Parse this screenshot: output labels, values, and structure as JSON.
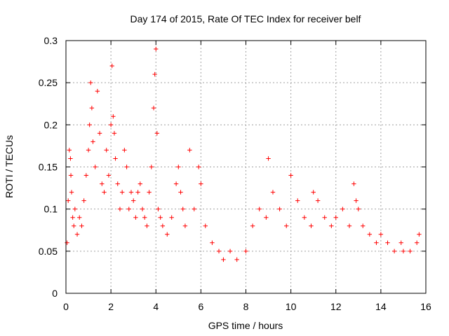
{
  "chart_data": {
    "type": "scatter",
    "title": "Day 174 of 2015, Rate Of TEC Index for receiver belf",
    "xlabel": "GPS time / hours",
    "ylabel": "ROTI / TECUs",
    "xlim": [
      0,
      16
    ],
    "ylim": [
      0,
      0.3
    ],
    "x_ticks": [
      0,
      2,
      4,
      6,
      8,
      10,
      12,
      14,
      16
    ],
    "y_ticks": [
      0,
      0.05,
      0.1,
      0.15,
      0.2,
      0.25,
      0.3
    ],
    "x_tick_labels": [
      "0",
      "2",
      "4",
      "6",
      "8",
      "10",
      "12",
      "14",
      "16"
    ],
    "y_tick_labels": [
      "0",
      "0.05",
      "0.1",
      "0.15",
      "0.2",
      "0.25",
      "0.3"
    ],
    "grid": true,
    "marker": "+",
    "color": "#ff0000",
    "series": [
      {
        "name": "ROTI",
        "x": [
          0.05,
          0.1,
          0.15,
          0.2,
          0.22,
          0.25,
          0.3,
          0.35,
          0.4,
          0.5,
          0.6,
          0.7,
          0.8,
          0.9,
          1.0,
          1.05,
          1.1,
          1.15,
          1.2,
          1.3,
          1.4,
          1.5,
          1.6,
          1.7,
          1.8,
          1.9,
          2.0,
          2.05,
          2.1,
          2.15,
          2.2,
          2.3,
          2.4,
          2.5,
          2.6,
          2.7,
          2.8,
          2.9,
          3.0,
          3.1,
          3.2,
          3.3,
          3.4,
          3.5,
          3.6,
          3.7,
          3.8,
          3.9,
          3.95,
          4.0,
          4.05,
          4.1,
          4.2,
          4.3,
          4.5,
          4.7,
          4.9,
          5.0,
          5.1,
          5.2,
          5.3,
          5.5,
          5.7,
          5.9,
          6.0,
          6.2,
          6.5,
          6.8,
          7.0,
          7.3,
          7.6,
          8.0,
          8.3,
          8.6,
          8.9,
          9.0,
          9.2,
          9.5,
          9.8,
          10.0,
          10.3,
          10.6,
          10.9,
          11.0,
          11.2,
          11.5,
          11.8,
          12.0,
          12.3,
          12.6,
          12.8,
          12.9,
          13.0,
          13.2,
          13.5,
          13.8,
          14.0,
          14.3,
          14.6,
          14.9,
          15.0,
          15.3,
          15.6,
          15.7
        ],
        "y": [
          0.06,
          0.11,
          0.17,
          0.16,
          0.14,
          0.12,
          0.09,
          0.08,
          0.1,
          0.07,
          0.09,
          0.08,
          0.11,
          0.14,
          0.17,
          0.2,
          0.25,
          0.22,
          0.18,
          0.15,
          0.24,
          0.19,
          0.13,
          0.12,
          0.17,
          0.14,
          0.2,
          0.27,
          0.21,
          0.19,
          0.16,
          0.13,
          0.1,
          0.12,
          0.17,
          0.15,
          0.1,
          0.12,
          0.11,
          0.09,
          0.12,
          0.13,
          0.1,
          0.09,
          0.08,
          0.12,
          0.15,
          0.22,
          0.26,
          0.29,
          0.19,
          0.1,
          0.09,
          0.08,
          0.07,
          0.09,
          0.13,
          0.15,
          0.12,
          0.1,
          0.08,
          0.17,
          0.1,
          0.15,
          0.13,
          0.08,
          0.06,
          0.05,
          0.04,
          0.05,
          0.04,
          0.05,
          0.08,
          0.1,
          0.09,
          0.16,
          0.12,
          0.1,
          0.08,
          0.14,
          0.11,
          0.09,
          0.08,
          0.12,
          0.11,
          0.09,
          0.08,
          0.09,
          0.1,
          0.08,
          0.13,
          0.11,
          0.1,
          0.08,
          0.07,
          0.06,
          0.07,
          0.06,
          0.05,
          0.06,
          0.05,
          0.05,
          0.06,
          0.07
        ]
      }
    ]
  }
}
